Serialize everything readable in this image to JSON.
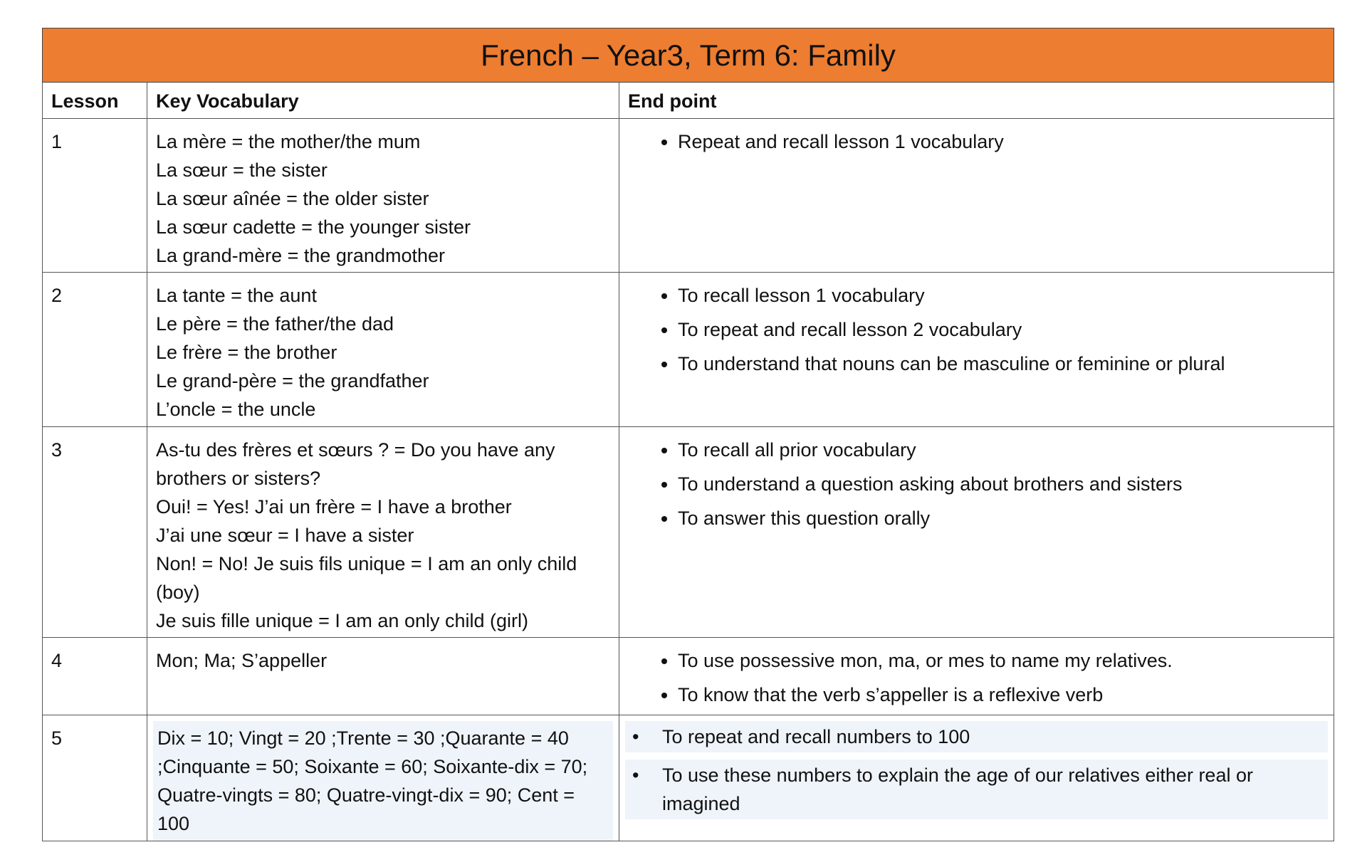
{
  "title": "French – Year3, Term 6: Family",
  "headers": {
    "lesson": "Lesson",
    "vocab": "Key Vocabulary",
    "endpoint": "End point"
  },
  "rows": [
    {
      "lesson": "1",
      "vocab": [
        "La mère = the mother/the mum",
        "La sœur = the sister",
        "La sœur aînée = the older sister",
        "La sœur cadette = the younger sister",
        "La grand-mère = the grandmother"
      ],
      "endpoints": [
        "Repeat and recall lesson 1 vocabulary"
      ]
    },
    {
      "lesson": "2",
      "vocab": [
        "La tante = the aunt",
        "Le père = the father/the dad",
        "Le frère = the brother",
        "Le grand-père = the grandfather",
        "L’oncle = the uncle"
      ],
      "endpoints": [
        "To recall lesson 1 vocabulary",
        "To repeat and recall lesson 2 vocabulary",
        "To understand that nouns can be masculine or feminine or plural"
      ]
    },
    {
      "lesson": "3",
      "vocab": [
        "As-tu des frères et sœurs ? = Do you have any brothers or sisters?",
        "Oui! = Yes! J’ai un frère = I have a brother",
        "J’ai une sœur = I have a sister",
        "Non! = No! Je suis fils unique = I am an only child (boy)",
        "Je suis fille unique = I am an only child (girl)"
      ],
      "endpoints": [
        "To recall all prior vocabulary",
        "To understand a question asking about brothers and sisters",
        "To answer this question orally"
      ]
    },
    {
      "lesson": "4",
      "vocab": [
        "Mon; Ma; S’appeller"
      ],
      "endpoints": [
        "To use possessive mon, ma, or mes to name my relatives.",
        "To know that the verb s’appeller is a reflexive verb"
      ]
    },
    {
      "lesson": "5",
      "vocab": [
        "Dix = 10; Vingt = 20 ;Trente = 30 ;Quarante = 40 ;Cinquante = 50; Soixante = 60; Soixante-dix = 70; Quatre-vingts = 80; Quatre-vingt-dix = 90; Cent = 100"
      ],
      "endpoints": [
        "To repeat and recall numbers to 100",
        "To use these numbers to  explain the age of our relatives either real or imagined"
      ]
    }
  ],
  "colors": {
    "title_bg": "#ed7d31",
    "highlight": "#eef4fa",
    "border": "#555555"
  }
}
